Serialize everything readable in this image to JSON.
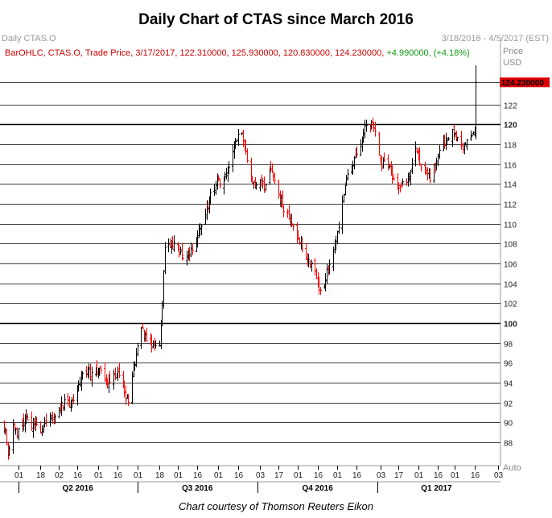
{
  "title": "Daily Chart of CTAS since March 2016",
  "header": {
    "left": "Daily CTAS.O",
    "right": "3/18/2016 - 4/5/2017 (EST)"
  },
  "legend": {
    "text": "BarOHLC, CTAS.O, Trade Price, 3/17/2017, 122.310000, 125.930000, 120.830000, 124.230000,",
    "change": "+4.990000, (+4.18%)"
  },
  "axis_units": {
    "price": "Price",
    "currency": "USD",
    "auto": "Auto"
  },
  "caption": "Chart courtesy of Thomson Reuters Eikon",
  "colors": {
    "up": "#000000",
    "down": "#ff0000",
    "last_price_bg": "#dd0000",
    "grid": "#000000"
  },
  "chart_data": {
    "type": "bar",
    "title": "Daily Chart of CTAS since March 2016",
    "ylim": [
      86,
      132
    ],
    "grid": true,
    "y_ticks": [
      88,
      90,
      92,
      94,
      96,
      98,
      100,
      102,
      104,
      106,
      108,
      110,
      112,
      114,
      116,
      118,
      120,
      122
    ],
    "y_ticks_bold": [
      100,
      120
    ],
    "last_price": "124.230000",
    "x_range": [
      "2016-03-18",
      "2017-04-05"
    ],
    "x_ticks": [
      {
        "date": "2016-04-01",
        "label": "01"
      },
      {
        "date": "2016-04-18",
        "label": "18"
      },
      {
        "date": "2016-05-02",
        "label": "02"
      },
      {
        "date": "2016-05-16",
        "label": "16"
      },
      {
        "date": "2016-06-01",
        "label": "01"
      },
      {
        "date": "2016-06-16",
        "label": "16"
      },
      {
        "date": "2016-07-01",
        "label": "01"
      },
      {
        "date": "2016-07-18",
        "label": "18"
      },
      {
        "date": "2016-08-01",
        "label": "01"
      },
      {
        "date": "2016-08-16",
        "label": "16"
      },
      {
        "date": "2016-09-01",
        "label": "01"
      },
      {
        "date": "2016-09-16",
        "label": "16"
      },
      {
        "date": "2016-10-03",
        "label": "03"
      },
      {
        "date": "2016-10-17",
        "label": "17"
      },
      {
        "date": "2016-11-01",
        "label": "01"
      },
      {
        "date": "2016-11-16",
        "label": "16"
      },
      {
        "date": "2016-12-01",
        "label": "01"
      },
      {
        "date": "2016-12-16",
        "label": "16"
      },
      {
        "date": "2017-01-03",
        "label": "03"
      },
      {
        "date": "2017-01-17",
        "label": "17"
      },
      {
        "date": "2017-02-01",
        "label": "01"
      },
      {
        "date": "2017-02-16",
        "label": "16"
      },
      {
        "date": "2017-03-01",
        "label": "01"
      },
      {
        "date": "2017-03-16",
        "label": "16"
      },
      {
        "date": "2017-04-03",
        "label": "03"
      }
    ],
    "quarters": [
      {
        "label": "Q2 2016",
        "start": "2016-04-01",
        "end": "2016-07-01"
      },
      {
        "label": "Q3 2016",
        "start": "2016-07-01",
        "end": "2016-10-01"
      },
      {
        "label": "Q4 2016",
        "start": "2016-10-01",
        "end": "2017-01-01"
      },
      {
        "label": "Q1 2017",
        "start": "2017-01-01",
        "end": "2017-04-01"
      }
    ],
    "series": [
      {
        "values": [
          [
            "2016-03-18",
            90.0
          ],
          [
            "2016-03-22",
            89.2
          ],
          [
            "2016-03-24",
            86.5
          ],
          [
            "2016-03-28",
            89.8
          ],
          [
            "2016-03-31",
            88.6
          ],
          [
            "2016-04-04",
            90.2
          ],
          [
            "2016-04-07",
            90.6
          ],
          [
            "2016-04-11",
            89.4
          ],
          [
            "2016-04-14",
            90.0
          ],
          [
            "2016-04-19",
            89.3
          ],
          [
            "2016-04-22",
            90.1
          ],
          [
            "2016-04-27",
            90.5
          ],
          [
            "2016-05-02",
            91.2
          ],
          [
            "2016-05-06",
            92.3
          ],
          [
            "2016-05-11",
            91.9
          ],
          [
            "2016-05-16",
            93.6
          ],
          [
            "2016-05-19",
            94.6
          ],
          [
            "2016-05-24",
            95.2
          ],
          [
            "2016-05-27",
            95.0
          ],
          [
            "2016-06-01",
            95.1
          ],
          [
            "2016-06-06",
            94.4
          ],
          [
            "2016-06-10",
            94.0
          ],
          [
            "2016-06-13",
            94.8
          ],
          [
            "2016-06-16",
            95.1
          ],
          [
            "2016-06-21",
            93.1
          ],
          [
            "2016-06-24",
            92.0
          ],
          [
            "2016-06-28",
            95.6
          ],
          [
            "2016-07-01",
            97.7
          ],
          [
            "2016-07-05",
            99.5
          ],
          [
            "2016-07-08",
            98.2
          ],
          [
            "2016-07-13",
            97.8
          ],
          [
            "2016-07-18",
            97.7
          ],
          [
            "2016-07-20",
            102.0
          ],
          [
            "2016-07-22",
            107.6
          ],
          [
            "2016-07-27",
            108.3
          ],
          [
            "2016-08-01",
            107.6
          ],
          [
            "2016-08-04",
            106.8
          ],
          [
            "2016-08-09",
            107.2
          ],
          [
            "2016-08-12",
            107.3
          ],
          [
            "2016-08-31",
            114.6
          ],
          [
            "2016-09-02",
            113.8
          ],
          [
            "2016-09-07",
            115.1
          ],
          [
            "2016-09-12",
            117.3
          ],
          [
            "2016-09-15",
            118.4
          ],
          [
            "2016-09-19",
            119.1
          ],
          [
            "2016-09-22",
            117.3
          ],
          [
            "2016-09-26",
            114.5
          ],
          [
            "2016-09-30",
            113.9
          ],
          [
            "2016-10-04",
            114.1
          ],
          [
            "2016-10-06",
            113.2
          ],
          [
            "2016-10-10",
            115.6
          ],
          [
            "2016-10-13",
            114.7
          ],
          [
            "2016-10-17",
            113.0
          ],
          [
            "2016-10-20",
            111.8
          ],
          [
            "2016-10-25",
            110.5
          ],
          [
            "2016-10-28",
            109.7
          ],
          [
            "2016-11-02",
            108.0
          ],
          [
            "2016-11-07",
            106.5
          ],
          [
            "2016-11-10",
            105.9
          ],
          [
            "2016-11-14",
            105.3
          ],
          [
            "2016-11-17",
            103.3
          ],
          [
            "2016-11-21",
            103.8
          ],
          [
            "2016-11-23",
            105.4
          ],
          [
            "2016-11-28",
            107.4
          ],
          [
            "2016-12-01",
            109.2
          ],
          [
            "2016-12-06",
            112.9
          ],
          [
            "2016-12-09",
            115.0
          ],
          [
            "2016-12-14",
            116.6
          ],
          [
            "2016-12-19",
            118.0
          ],
          [
            "2016-12-22",
            120.0
          ],
          [
            "2016-12-27",
            120.2
          ],
          [
            "2016-12-30",
            119.3
          ],
          [
            "2017-01-04",
            115.8
          ],
          [
            "2017-01-06",
            116.4
          ],
          [
            "2017-01-10",
            115.8
          ],
          [
            "2017-01-13",
            114.5
          ],
          [
            "2017-01-18",
            113.8
          ],
          [
            "2017-01-23",
            114.0
          ],
          [
            "2017-01-26",
            115.3
          ],
          [
            "2017-01-30",
            117.6
          ],
          [
            "2017-02-02",
            116.1
          ],
          [
            "2017-02-07",
            115.1
          ],
          [
            "2017-02-10",
            114.3
          ],
          [
            "2017-02-15",
            116.3
          ],
          [
            "2017-02-17",
            117.4
          ],
          [
            "2017-02-22",
            118.5
          ],
          [
            "2017-02-27",
            119.5
          ],
          [
            "2017-03-02",
            118.7
          ],
          [
            "2017-03-06",
            118.1
          ],
          [
            "2017-03-09",
            118.0
          ],
          [
            "2017-03-14",
            118.9
          ],
          [
            "2017-03-16",
            119.3
          ],
          [
            "2017-03-17",
            124.23
          ]
        ]
      }
    ]
  }
}
